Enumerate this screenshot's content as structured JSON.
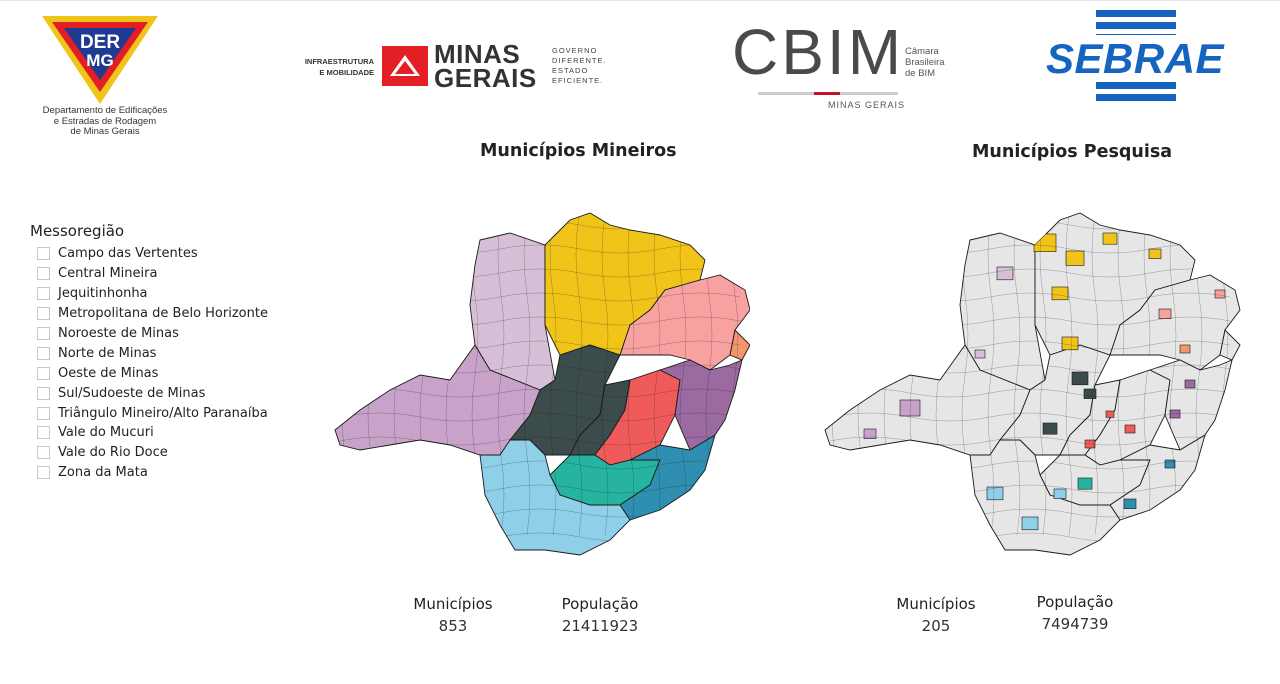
{
  "logos": {
    "dermg": {
      "mark_text_top": "DER",
      "mark_text_bottom": "MG",
      "caption": [
        "Departamento de Edificações",
        "e Estradas de Rodagem",
        "de Minas Gerais"
      ]
    },
    "minas_gerais": {
      "infra": [
        "INFRAESTRUTURA",
        "E MOBILIDADE"
      ],
      "name": [
        "MINAS",
        "GERAIS"
      ],
      "slogan": [
        "GOVERNO",
        "DIFERENTE.",
        "ESTADO",
        "EFICIENTE."
      ]
    },
    "cbim": {
      "word": "CBIM",
      "side": [
        "Câmara",
        "Brasileira",
        "de BIM"
      ],
      "sub": "MINAS GERAIS"
    },
    "sebrae": {
      "word": "SEBRAE"
    }
  },
  "maps": [
    {
      "title": "Municípios Mineiros",
      "stats": [
        {
          "label": "Municípios",
          "value": "853"
        },
        {
          "label": "População",
          "value": "21411923"
        }
      ]
    },
    {
      "title": "Municípios Pesquisa",
      "stats": [
        {
          "label": "Municípios",
          "value": "205"
        },
        {
          "label": "População",
          "value": "7494739"
        }
      ]
    }
  ],
  "filter": {
    "title": "Messoregião",
    "items": [
      {
        "label": "Campo das Vertentes",
        "checked": false
      },
      {
        "label": "Central Mineira",
        "checked": false
      },
      {
        "label": "Jequitinhonha",
        "checked": false
      },
      {
        "label": "Metropolitana de Belo Horizonte",
        "checked": false
      },
      {
        "label": "Noroeste de Minas",
        "checked": false
      },
      {
        "label": "Norte de Minas",
        "checked": false
      },
      {
        "label": "Oeste de Minas",
        "checked": false
      },
      {
        "label": "Sul/Sudoeste de Minas",
        "checked": false
      },
      {
        "label": "Triângulo Mineiro/Alto Paranaíba",
        "checked": false
      },
      {
        "label": "Vale do Mucuri",
        "checked": false
      },
      {
        "label": "Vale do Rio Doce",
        "checked": false
      },
      {
        "label": "Zona da Mata",
        "checked": false
      }
    ]
  },
  "colors": {
    "norte": "#f0c419",
    "noroeste": "#d8bfd8",
    "triangulo": "#c8a2c8",
    "central": "#3c4b4b",
    "metropolitana": "#3c4b4b",
    "jequitinhonha": "#f7a1a1",
    "mucuri": "#f4956a",
    "rio_doce": "#9b6aa0",
    "oeste": "#ef5b5b",
    "campo": "#26b3a0",
    "sul": "#8fcfe8",
    "zona_mata": "#2e8fb0",
    "pesquisa_base": "#e6e6e6",
    "border": "#1a1a1a"
  }
}
